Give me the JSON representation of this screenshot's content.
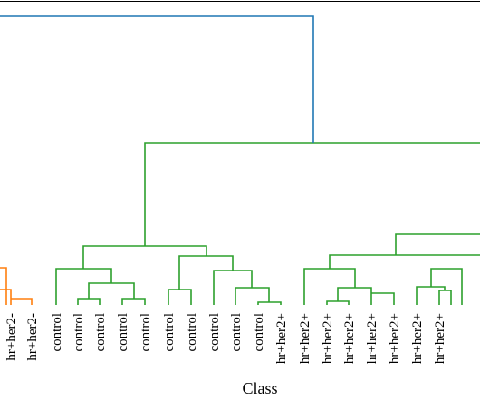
{
  "chart_data": {
    "type": "dendrogram",
    "title": "",
    "xlabel": "Class",
    "ylabel": "",
    "grid": false,
    "legend": "none",
    "colors": {
      "root": "#1f77b4",
      "orange_cluster": "#ff7f0e",
      "green_cluster": "#2ca02c",
      "frame": "#000000"
    },
    "leaves": [
      {
        "label": "hr+her2-",
        "cluster": "orange"
      },
      {
        "label": "hr+her2-",
        "cluster": "orange"
      },
      {
        "label": "control",
        "cluster": "green"
      },
      {
        "label": "control",
        "cluster": "green"
      },
      {
        "label": "control",
        "cluster": "green"
      },
      {
        "label": "control",
        "cluster": "green"
      },
      {
        "label": "control",
        "cluster": "green"
      },
      {
        "label": "control",
        "cluster": "green"
      },
      {
        "label": "control",
        "cluster": "green"
      },
      {
        "label": "control",
        "cluster": "green"
      },
      {
        "label": "control",
        "cluster": "green"
      },
      {
        "label": "control",
        "cluster": "green"
      },
      {
        "label": "hr+her2+",
        "cluster": "green"
      },
      {
        "label": "hr+her2+",
        "cluster": "green"
      },
      {
        "label": "hr+her2+",
        "cluster": "green"
      },
      {
        "label": "hr+her2+",
        "cluster": "green"
      },
      {
        "label": "hr+her2+",
        "cluster": "green"
      },
      {
        "label": "hr+her2+",
        "cluster": "green"
      },
      {
        "label": "hr+her2+",
        "cluster": "green"
      },
      {
        "label": "hr+her2+",
        "cluster": "green"
      }
    ],
    "merges": [
      {
        "a": "L2",
        "b": "L3",
        "height": 0.05,
        "cluster": "green"
      },
      {
        "a": "L4",
        "b": "L5",
        "height": 0.05,
        "cluster": "green"
      },
      {
        "a": "L3",
        "b": "M1",
        "height": 0.1,
        "cluster": "green"
      },
      {
        "a": "M0",
        "b": "M2",
        "height": 0.16,
        "cluster": "green"
      },
      {
        "a": "L6",
        "b": "L7",
        "height": 0.07,
        "cluster": "green"
      },
      {
        "a": "L10",
        "b": "L11",
        "height": 0.03,
        "cluster": "green"
      },
      {
        "a": "L9",
        "b": "M5",
        "height": 0.09,
        "cluster": "green"
      },
      {
        "a": "L8",
        "b": "M6",
        "height": 0.14,
        "cluster": "green"
      },
      {
        "a": "M4",
        "b": "M7",
        "height": 0.21,
        "cluster": "green"
      },
      {
        "a": "M3",
        "b": "M8",
        "height": 0.25,
        "cluster": "green"
      },
      {
        "a": "L13",
        "b": "L14",
        "height": 0.03,
        "cluster": "green"
      },
      {
        "a": "M10",
        "b": "L15",
        "height": 0.07,
        "cluster": "green"
      },
      {
        "a": "L12",
        "b": "M11",
        "height": 0.14,
        "cluster": "green"
      },
      {
        "a": "L17",
        "b": "L18",
        "height": 0.07,
        "cluster": "green"
      },
      {
        "a": "L16",
        "b": "M13",
        "height": 0.09,
        "cluster": "green"
      },
      {
        "a": "M14",
        "b": "L19",
        "height": 0.16,
        "cluster": "green"
      },
      {
        "a": "M12",
        "b": "M15",
        "height": 0.21,
        "cluster": "green"
      },
      {
        "a": "M16",
        "b": "edge",
        "height": 0.27,
        "cluster": "green"
      },
      {
        "a": "M9",
        "b": "M17",
        "height": 0.56,
        "cluster": "green"
      },
      {
        "a": "orange",
        "b": "M18",
        "height": 0.97,
        "cluster": "root"
      }
    ]
  }
}
